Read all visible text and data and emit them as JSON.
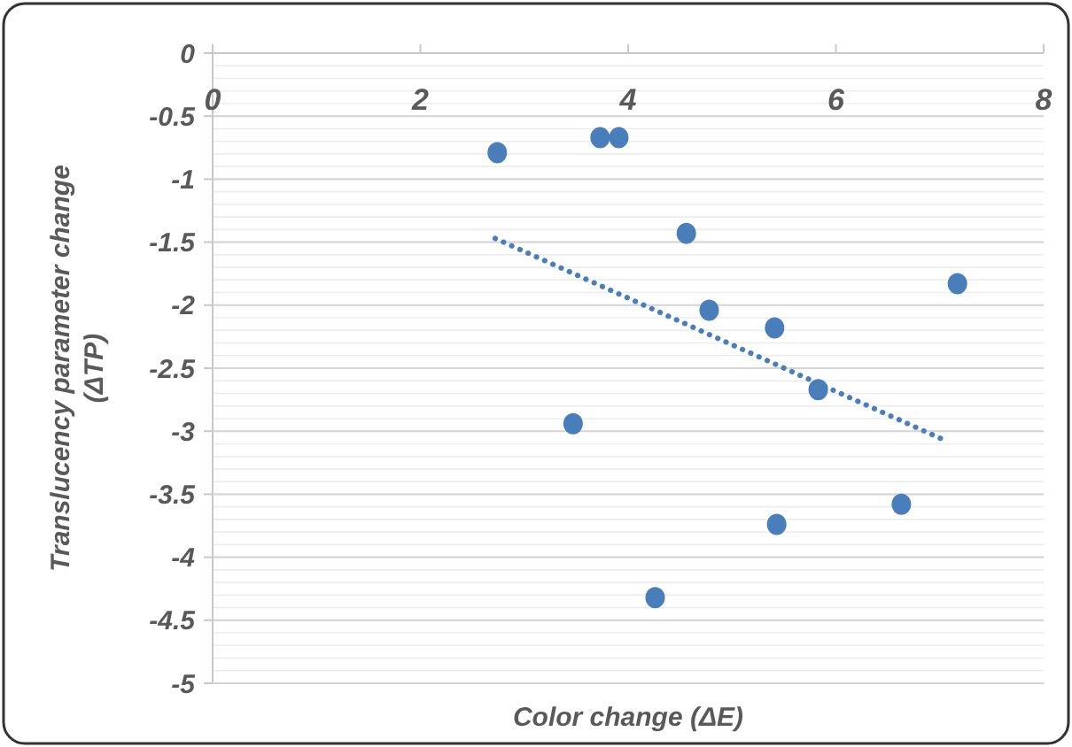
{
  "chart_data": {
    "type": "scatter",
    "xlabel": "Color change (ΔE)",
    "ylabel": "Translucency parameter change (ΔTP)",
    "xlim": [
      0,
      8
    ],
    "xticks": [
      0,
      2,
      4,
      6,
      8
    ],
    "ylim": [
      -5,
      0
    ],
    "yticks": [
      0,
      -0.5,
      -1,
      -1.5,
      -2,
      -2.5,
      -3,
      -3.5,
      -4,
      -4.5,
      -5
    ],
    "grid": "y",
    "series": [
      {
        "marker": "circle",
        "color": "#4a7ebb",
        "x": [
          2.74,
          3.73,
          3.91,
          4.56,
          4.78,
          5.41,
          7.17,
          5.83,
          3.47,
          4.26,
          5.43,
          6.63
        ],
        "values": [
          -0.79,
          -0.67,
          -0.67,
          -1.43,
          -2.04,
          -2.18,
          -1.83,
          -2.67,
          -2.94,
          -4.32,
          -3.74,
          -3.58
        ]
      },
      {
        "type": "line",
        "color": "#4a7ebb",
        "line_style": "dotted",
        "x": [
          2.72,
          7.07
        ],
        "values": [
          -1.47,
          -3.08
        ]
      }
    ]
  }
}
